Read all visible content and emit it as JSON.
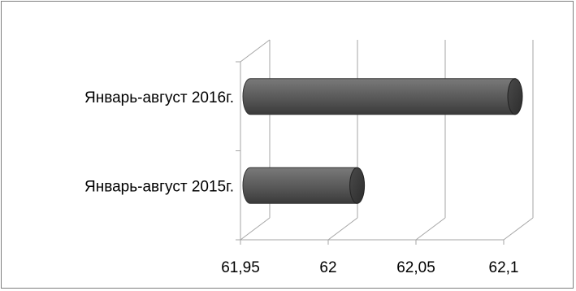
{
  "chart_data": {
    "type": "bar",
    "orientation": "horizontal",
    "style": "3d-cylinder",
    "categories": [
      "Январь-август 2015г.",
      "Январь-август 2016г."
    ],
    "values": [
      62.01,
      62.11
    ],
    "xlim": [
      61.95,
      62.1
    ],
    "xticks": [
      61.95,
      62,
      62.05,
      62.1
    ],
    "xtick_labels": [
      "61,95",
      "62",
      "62,05",
      "62,1"
    ],
    "title": "",
    "xlabel": "",
    "ylabel": "",
    "grid": true,
    "legend": "none",
    "bar_color": "#595959",
    "grid_color": "#a6a6a6"
  }
}
